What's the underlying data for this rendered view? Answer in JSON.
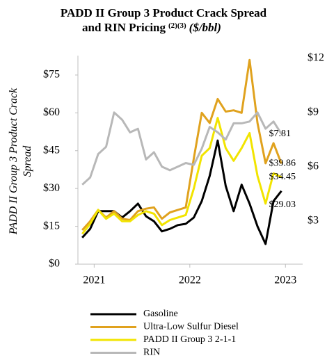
{
  "chart_data": {
    "type": "line",
    "title_lines": [
      "PADD II Group 3 Product Crack Spread",
      "and RIN Pricing"
    ],
    "title_superscript": "(2)(3)",
    "title_units": "($/bbl)",
    "ylabel": [
      "PADD II Group 3 Product Crack",
      "Spread"
    ],
    "x": [
      2020.875,
      2020.958,
      2021.042,
      2021.125,
      2021.208,
      2021.292,
      2021.375,
      2021.458,
      2021.542,
      2021.625,
      2021.708,
      2021.792,
      2021.875,
      2021.958,
      2022.042,
      2022.125,
      2022.208,
      2022.292,
      2022.375,
      2022.458,
      2022.542,
      2022.625,
      2022.708,
      2022.792,
      2022.875,
      2022.958
    ],
    "xlim": [
      2020.83,
      2023.18
    ],
    "xticks": [
      2021,
      2022,
      2023
    ],
    "ylim": [
      0,
      82.7
    ],
    "yticks": [
      {
        "value": 0,
        "label": "$0"
      },
      {
        "value": 15,
        "label": "$15"
      },
      {
        "value": 30,
        "label": "$30"
      },
      {
        "value": 45,
        "label": "$45"
      },
      {
        "value": 60,
        "label": "$60"
      },
      {
        "value": 75,
        "label": "$75"
      }
    ],
    "y2lim": [
      0.6,
      12.15
    ],
    "y2ticks": [
      {
        "value": 3,
        "label": "$3"
      },
      {
        "value": 6,
        "label": "$6"
      },
      {
        "value": 9,
        "label": "$9"
      },
      {
        "value": 12,
        "label": "$12"
      }
    ],
    "series": [
      {
        "name": "Gasoline",
        "color": "#000000",
        "values": [
          10.5,
          14,
          21,
          21,
          21,
          18.5,
          21,
          24,
          19,
          17,
          13,
          14,
          15.5,
          16,
          18.5,
          25,
          35,
          49,
          31,
          21,
          31.5,
          24,
          15,
          8,
          25,
          29.03
        ],
        "value_labels": [
          null,
          null,
          null,
          null,
          null,
          null,
          null,
          null,
          null,
          null,
          null,
          null,
          null,
          null,
          null,
          null,
          null,
          null,
          null,
          null,
          null,
          null,
          null,
          null,
          null,
          "$29.03"
        ]
      },
      {
        "name": "Ultra-Low Sulfur Diesel",
        "color": "#e0a21e",
        "values": [
          13.5,
          17,
          21.5,
          18.5,
          21,
          18,
          17.5,
          21,
          22,
          22.5,
          18,
          20.5,
          21.5,
          22.5,
          42,
          60,
          56,
          65.5,
          60.5,
          61,
          60,
          81,
          56,
          40,
          48,
          39.86
        ],
        "value_labels": [
          null,
          null,
          null,
          null,
          null,
          null,
          null,
          null,
          null,
          null,
          null,
          null,
          null,
          null,
          null,
          null,
          null,
          null,
          null,
          null,
          null,
          null,
          null,
          null,
          null,
          "$39.86"
        ]
      },
      {
        "name": "PADD II Group 3 2-1-1",
        "color": "#f2e400",
        "values": [
          12,
          16,
          21.5,
          18,
          20,
          17,
          17,
          19.5,
          21,
          20,
          15.5,
          17.5,
          18.5,
          19.5,
          30,
          43,
          46,
          58,
          46,
          41,
          46,
          52,
          35,
          24,
          36,
          34.45
        ],
        "value_labels": [
          null,
          null,
          null,
          null,
          null,
          null,
          null,
          null,
          null,
          null,
          null,
          null,
          null,
          null,
          null,
          null,
          null,
          null,
          null,
          null,
          null,
          null,
          null,
          null,
          null,
          "$34.45"
        ]
      },
      {
        "name": "RIN",
        "color": "#b8b8b8",
        "axis": "y2",
        "values": [
          5.0,
          5.4,
          6.7,
          7.1,
          9.0,
          8.6,
          7.9,
          8.1,
          6.4,
          6.8,
          6.0,
          5.8,
          6.0,
          6.2,
          6.1,
          7.0,
          8.2,
          7.9,
          7.5,
          8.4,
          8.4,
          8.5,
          9.0,
          8.1,
          8.5,
          7.81
        ],
        "value_labels": [
          null,
          null,
          null,
          null,
          null,
          null,
          null,
          null,
          null,
          null,
          null,
          null,
          null,
          null,
          null,
          null,
          null,
          null,
          null,
          null,
          null,
          null,
          null,
          null,
          null,
          "$7.81"
        ]
      }
    ],
    "legend": "bottom"
  }
}
